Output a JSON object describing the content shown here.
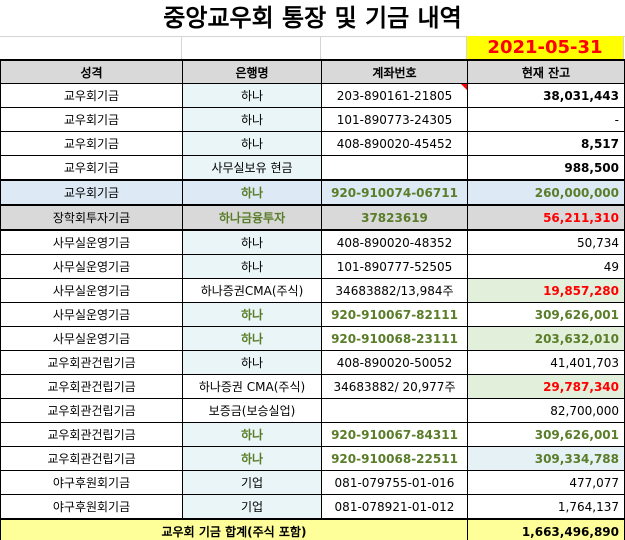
{
  "title": "중앙교우회 통장 및 기금 내역",
  "date": "2021-05-31",
  "headers": [
    "성격",
    "은행명",
    "계좌번호",
    "현재 잔고"
  ],
  "rows": [
    [
      "교우회기금",
      "하나",
      "203-890161-21805",
      "38,031,443"
    ],
    [
      "교우회기금",
      "하나",
      "101-890773-24305",
      "-"
    ],
    [
      "교우회기금",
      "하나",
      "408-890020-45452",
      "8,517"
    ],
    [
      "교우회기금",
      "사무실보유 현금",
      "",
      "988,500"
    ],
    [
      "교우회기금",
      "하나",
      "920-910074-06711",
      "260,000,000"
    ],
    [
      "장학회투자기금",
      "하나금융투자",
      "37823619",
      "56,211,310"
    ],
    [
      "사무실운영기금",
      "하나",
      "408-890020-48352",
      "50,734"
    ],
    [
      "사무실운영기금",
      "하나",
      "101-890777-52505",
      "49"
    ],
    [
      "사무실운영기금",
      "하나증권CMA(주식)",
      "34683882/13,984주",
      "19,857,280"
    ],
    [
      "사무실운영기금",
      "하나",
      "920-910067-82111",
      "309,626,001"
    ],
    [
      "사무실운영기금",
      "하나",
      "920-910068-23111",
      "203,632,010"
    ],
    [
      "교우회관건립기금",
      "하나",
      "408-890020-50052",
      "41,401,703"
    ],
    [
      "교우회관건립기금",
      "하나증권 CMA(주식)",
      "34683882/ 20,977주",
      "29,787,340"
    ],
    [
      "교우회관건립기금",
      "보증금(보승실업)",
      "",
      "82,700,000"
    ],
    [
      "교우회관건립기금",
      "하나",
      "920-910067-84311",
      "309,626,001"
    ],
    [
      "교우회관건립기금",
      "하나",
      "920-910068-22511",
      "309,334,788"
    ],
    [
      "야구후원회기금",
      "기업",
      "081-079755-01-016",
      "477,077"
    ],
    [
      "야구후원회기금",
      "기업",
      "081-078921-01-012",
      "1,764,137"
    ]
  ],
  "total": {
    "label": "교우회 기금 합계(주식 포함)",
    "value": "1,663,496,890"
  }
}
